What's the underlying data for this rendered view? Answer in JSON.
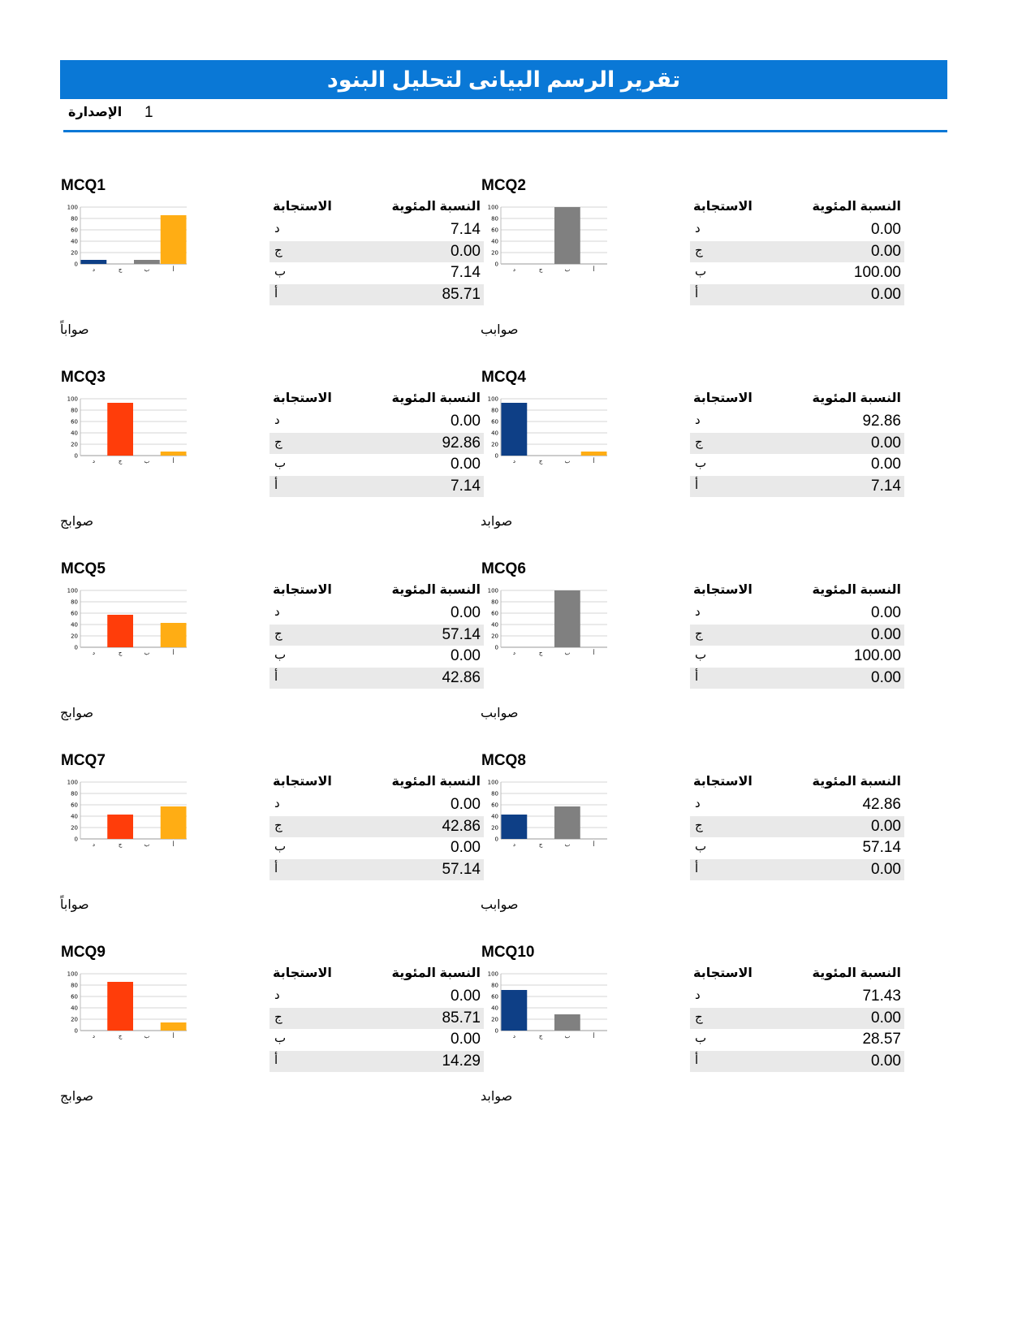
{
  "header": {
    "title": "تقرير الرسم البيانى لتحليل البنود",
    "version_label": "الإصدارة",
    "version_value": "1"
  },
  "labels": {
    "response": "الاستجابة",
    "percent": "النسبة المئوية"
  },
  "colors": {
    "header": "#0a78d6",
    "option_d": "#0e3f86",
    "option_j": "#ff3d0a",
    "option_b": "#808080",
    "option_a": "#ffad14",
    "row_alt": "#e9e9e9"
  },
  "chart_data": [
    {
      "type": "bar",
      "title": "MCQ1",
      "categories": [
        "د",
        "ج",
        "ب",
        "أ"
      ],
      "values": [
        7.14,
        0.0,
        7.14,
        85.71
      ],
      "ylim": [
        0,
        100
      ],
      "yticks": [
        0,
        20,
        40,
        60,
        80,
        100
      ]
    },
    {
      "type": "bar",
      "title": "MCQ2",
      "categories": [
        "د",
        "ج",
        "ب",
        "أ"
      ],
      "values": [
        0.0,
        0.0,
        100.0,
        0.0
      ],
      "ylim": [
        0,
        100
      ],
      "yticks": [
        0,
        20,
        40,
        60,
        80,
        100
      ]
    },
    {
      "type": "bar",
      "title": "MCQ3",
      "categories": [
        "د",
        "ج",
        "ب",
        "أ"
      ],
      "values": [
        0.0,
        92.86,
        0.0,
        7.14
      ],
      "ylim": [
        0,
        100
      ],
      "yticks": [
        0,
        20,
        40,
        60,
        80,
        100
      ]
    },
    {
      "type": "bar",
      "title": "MCQ4",
      "categories": [
        "د",
        "ج",
        "ب",
        "أ"
      ],
      "values": [
        92.86,
        0.0,
        0.0,
        7.14
      ],
      "ylim": [
        0,
        100
      ],
      "yticks": [
        0,
        20,
        40,
        60,
        80,
        100
      ]
    },
    {
      "type": "bar",
      "title": "MCQ5",
      "categories": [
        "د",
        "ج",
        "ب",
        "أ"
      ],
      "values": [
        0.0,
        57.14,
        0.0,
        42.86
      ],
      "ylim": [
        0,
        100
      ],
      "yticks": [
        0,
        20,
        40,
        60,
        80,
        100
      ]
    },
    {
      "type": "bar",
      "title": "MCQ6",
      "categories": [
        "د",
        "ج",
        "ب",
        "أ"
      ],
      "values": [
        0.0,
        0.0,
        100.0,
        0.0
      ],
      "ylim": [
        0,
        100
      ],
      "yticks": [
        0,
        20,
        40,
        60,
        80,
        100
      ]
    },
    {
      "type": "bar",
      "title": "MCQ7",
      "categories": [
        "د",
        "ج",
        "ب",
        "أ"
      ],
      "values": [
        0.0,
        42.86,
        0.0,
        57.14
      ],
      "ylim": [
        0,
        100
      ],
      "yticks": [
        0,
        20,
        40,
        60,
        80,
        100
      ]
    },
    {
      "type": "bar",
      "title": "MCQ8",
      "categories": [
        "د",
        "ج",
        "ب",
        "أ"
      ],
      "values": [
        42.86,
        0.0,
        57.14,
        0.0
      ],
      "ylim": [
        0,
        100
      ],
      "yticks": [
        0,
        20,
        40,
        60,
        80,
        100
      ]
    },
    {
      "type": "bar",
      "title": "MCQ9",
      "categories": [
        "د",
        "ج",
        "ب",
        "أ"
      ],
      "values": [
        0.0,
        85.71,
        0.0,
        14.29
      ],
      "ylim": [
        0,
        100
      ],
      "yticks": [
        0,
        20,
        40,
        60,
        80,
        100
      ]
    },
    {
      "type": "bar",
      "title": "MCQ10",
      "categories": [
        "د",
        "ج",
        "ب",
        "أ"
      ],
      "values": [
        71.43,
        0.0,
        28.57,
        0.0
      ],
      "ylim": [
        0,
        100
      ],
      "yticks": [
        0,
        20,
        40,
        60,
        80,
        100
      ]
    }
  ],
  "questions": [
    {
      "title": "MCQ1",
      "rows": [
        {
          "label": "د",
          "value": "7.14"
        },
        {
          "label": "ج",
          "value": "0.00"
        },
        {
          "label": "ب",
          "value": "7.14"
        },
        {
          "label": "أ",
          "value": "85.71"
        }
      ],
      "correct": "صواباً"
    },
    {
      "title": "MCQ2",
      "rows": [
        {
          "label": "د",
          "value": "0.00"
        },
        {
          "label": "ج",
          "value": "0.00"
        },
        {
          "label": "ب",
          "value": "100.00"
        },
        {
          "label": "أ",
          "value": "0.00"
        }
      ],
      "correct": "صوابب"
    },
    {
      "title": "MCQ3",
      "rows": [
        {
          "label": "د",
          "value": "0.00"
        },
        {
          "label": "ج",
          "value": "92.86"
        },
        {
          "label": "ب",
          "value": "0.00"
        },
        {
          "label": "أ",
          "value": "7.14"
        }
      ],
      "correct": "صوابج"
    },
    {
      "title": "MCQ4",
      "rows": [
        {
          "label": "د",
          "value": "92.86"
        },
        {
          "label": "ج",
          "value": "0.00"
        },
        {
          "label": "ب",
          "value": "0.00"
        },
        {
          "label": "أ",
          "value": "7.14"
        }
      ],
      "correct": "صوابد"
    },
    {
      "title": "MCQ5",
      "rows": [
        {
          "label": "د",
          "value": "0.00"
        },
        {
          "label": "ج",
          "value": "57.14"
        },
        {
          "label": "ب",
          "value": "0.00"
        },
        {
          "label": "أ",
          "value": "42.86"
        }
      ],
      "correct": "صوابج"
    },
    {
      "title": "MCQ6",
      "rows": [
        {
          "label": "د",
          "value": "0.00"
        },
        {
          "label": "ج",
          "value": "0.00"
        },
        {
          "label": "ب",
          "value": "100.00"
        },
        {
          "label": "أ",
          "value": "0.00"
        }
      ],
      "correct": "صوابب"
    },
    {
      "title": "MCQ7",
      "rows": [
        {
          "label": "د",
          "value": "0.00"
        },
        {
          "label": "ج",
          "value": "42.86"
        },
        {
          "label": "ب",
          "value": "0.00"
        },
        {
          "label": "أ",
          "value": "57.14"
        }
      ],
      "correct": "صواباً"
    },
    {
      "title": "MCQ8",
      "rows": [
        {
          "label": "د",
          "value": "42.86"
        },
        {
          "label": "ج",
          "value": "0.00"
        },
        {
          "label": "ب",
          "value": "57.14"
        },
        {
          "label": "أ",
          "value": "0.00"
        }
      ],
      "correct": "صوابب"
    },
    {
      "title": "MCQ9",
      "rows": [
        {
          "label": "د",
          "value": "0.00"
        },
        {
          "label": "ج",
          "value": "85.71"
        },
        {
          "label": "ب",
          "value": "0.00"
        },
        {
          "label": "أ",
          "value": "14.29"
        }
      ],
      "correct": "صوابج"
    },
    {
      "title": "MCQ10",
      "rows": [
        {
          "label": "د",
          "value": "71.43"
        },
        {
          "label": "ج",
          "value": "0.00"
        },
        {
          "label": "ب",
          "value": "28.57"
        },
        {
          "label": "أ",
          "value": "0.00"
        }
      ],
      "correct": "صوابد"
    }
  ]
}
